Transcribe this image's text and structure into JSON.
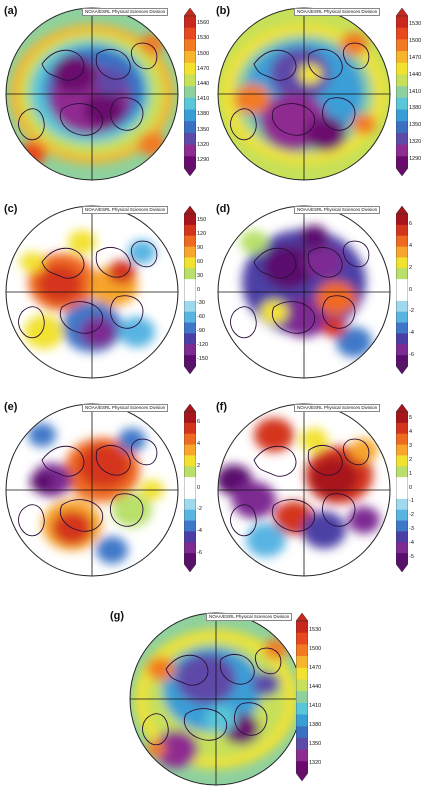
{
  "credit_text": "NOAA/ESRL Physical Sciences Division",
  "panels": [
    {
      "label": "(a)",
      "palette": "height_a",
      "ticks": [
        "1560",
        "1530",
        "1500",
        "1470",
        "1440",
        "1410",
        "1380",
        "1350",
        "1320",
        "1290"
      ]
    },
    {
      "label": "(b)",
      "palette": "height_b",
      "ticks": [
        "1530",
        "1500",
        "1470",
        "1440",
        "1410",
        "1380",
        "1350",
        "1320",
        "1290"
      ]
    },
    {
      "label": "(c)",
      "palette": "anom_c",
      "ticks": [
        "150",
        "120",
        "90",
        "60",
        "30",
        "0",
        "-30",
        "-60",
        "-90",
        "-120",
        "-150"
      ]
    },
    {
      "label": "(d)",
      "palette": "anom_d",
      "ticks": [
        "6",
        "4",
        "2",
        "0",
        "-2",
        "-4",
        "-6"
      ]
    },
    {
      "label": "(e)",
      "palette": "anom_e",
      "ticks": [
        "6",
        "4",
        "2",
        "0",
        "-2",
        "-4",
        "-6"
      ]
    },
    {
      "label": "(f)",
      "palette": "anom_f",
      "ticks": [
        "5",
        "4",
        "3",
        "2",
        "1",
        "0",
        "-1",
        "-2",
        "-3",
        "-4",
        "-5"
      ]
    },
    {
      "label": "(g)",
      "palette": "height_g",
      "ticks": [
        "1530",
        "1500",
        "1470",
        "1440",
        "1410",
        "1380",
        "1350",
        "1320"
      ]
    }
  ]
}
